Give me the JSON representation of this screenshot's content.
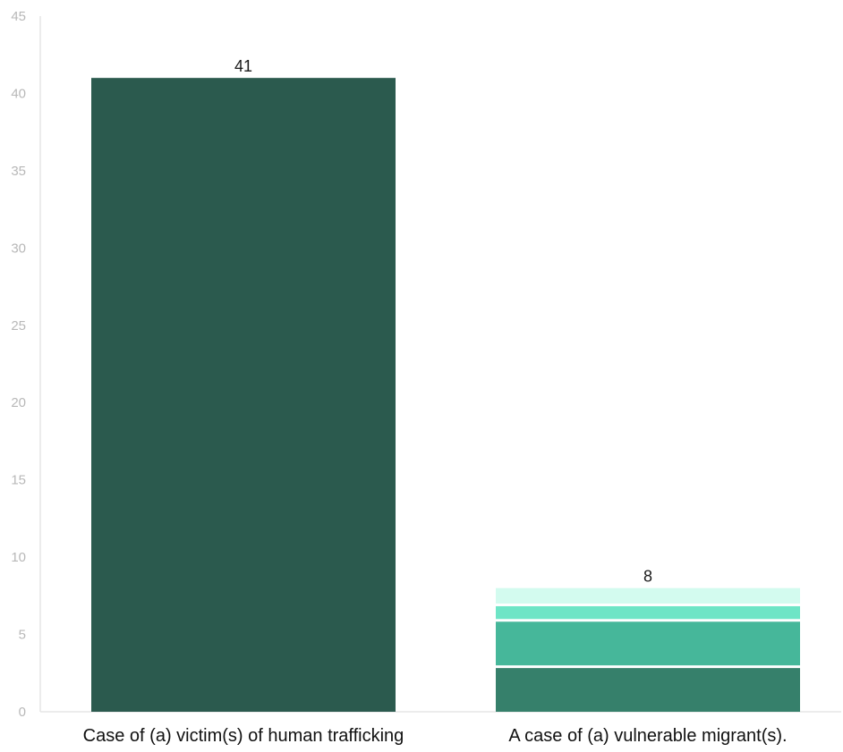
{
  "chart_data": {
    "type": "bar",
    "stacked": true,
    "categories": [
      "Case of (a) victim(s) of human trafficking",
      "A case of (a) vulnerable migrant(s)."
    ],
    "segments": [
      [
        {
          "value": 41,
          "color": "#2b5a4e"
        }
      ],
      [
        {
          "value": 3,
          "color": "#36806b"
        },
        {
          "value": 3,
          "color": "#46b79a"
        },
        {
          "value": 1,
          "color": "#6ee5c6"
        },
        {
          "value": 1,
          "color": "#d3fbef"
        }
      ]
    ],
    "totals": [
      41,
      8
    ],
    "ylim": [
      0,
      45
    ],
    "yticks": [
      0,
      5,
      10,
      15,
      20,
      25,
      30,
      35,
      40,
      45
    ],
    "grid": false,
    "legend": "none"
  }
}
